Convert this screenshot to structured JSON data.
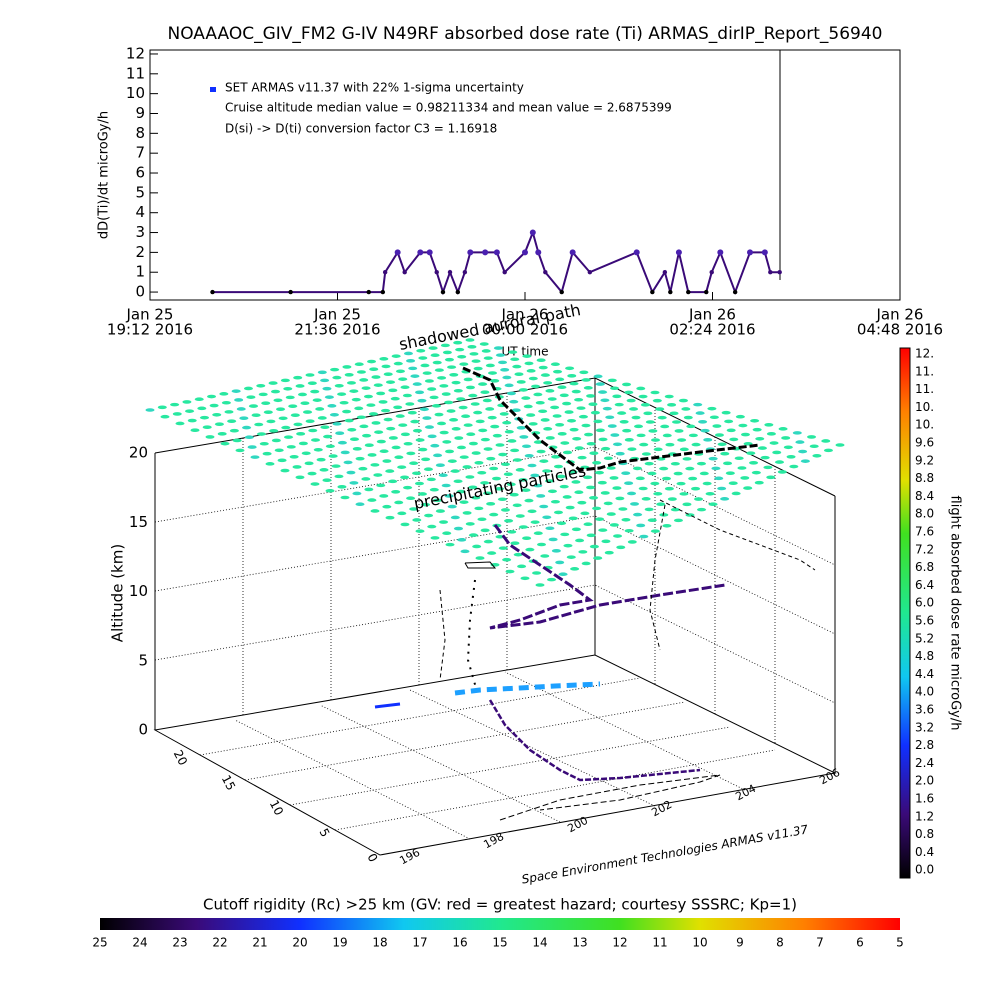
{
  "chart_data": {
    "type": "line",
    "title": "NOAAAOC_GIV_FM2 G-IV    N49RF  absorbed dose rate (Ti) ARMAS_dirIP_Report_56940",
    "y_label": "dD(Ti)/dt microGy/h",
    "x_label": "UT time",
    "legend_lines": [
      "SET ARMAS v11.37 with 22% 1-sigma uncertainty",
      "Cruise altitude median value = 0.98211334 and mean value = 2.6875399",
      "D(si) -> D(ti) conversion factor C3 = 1.16918"
    ],
    "ylim": [
      -0.4,
      12.2
    ],
    "yticks": [
      0,
      1,
      2,
      3,
      4,
      5,
      6,
      7,
      8,
      9,
      10,
      11,
      12
    ],
    "xlim": [
      19.2,
      28.8
    ],
    "xticks": [
      {
        "value": 19.2,
        "label": [
          "Jan 25",
          "19:12 2016"
        ]
      },
      {
        "value": 21.6,
        "label": [
          "Jan 25",
          "21:36 2016"
        ]
      },
      {
        "value": 24.0,
        "label": [
          "Jan 26",
          "00:00 2016"
        ]
      },
      {
        "value": 26.4,
        "label": [
          "Jan 26",
          "02:24 2016"
        ]
      },
      {
        "value": 28.8,
        "label": [
          "Jan 26",
          "04:48 2016"
        ]
      }
    ],
    "series": [
      {
        "name": "SET ARMAS v11.37",
        "color": "#3a0a78",
        "x": [
          20.0,
          21.0,
          22.0,
          22.18,
          22.21,
          22.37,
          22.46,
          22.66,
          22.78,
          22.87,
          22.95,
          23.04,
          23.14,
          23.23,
          23.3,
          23.49,
          23.64,
          23.74,
          24.0,
          24.1,
          24.17,
          24.26,
          24.47,
          24.61,
          24.83,
          25.43,
          25.63,
          25.79,
          25.86,
          25.97,
          26.09,
          26.32,
          26.39,
          26.5,
          26.69,
          26.88,
          27.07,
          27.14,
          27.26
        ],
        "values": [
          0,
          0,
          0,
          0,
          1,
          2,
          1,
          2,
          2,
          1,
          0,
          1,
          0,
          1,
          2,
          2,
          2,
          1,
          2,
          3,
          2,
          1,
          0,
          2,
          1,
          2,
          0,
          1,
          0,
          2,
          0,
          0,
          1,
          2,
          0,
          2,
          2,
          1,
          1
        ]
      }
    ]
  },
  "panel_3d": {
    "annotations": [
      "shadowed auroral path",
      "precipitating particles"
    ],
    "z_label": "Altitude (km)",
    "zticks": [
      "0",
      "5",
      "10",
      "15",
      "20"
    ],
    "left_ticks": [
      "20",
      "15",
      "10",
      "5",
      "0"
    ],
    "bottom_ticks": [
      "196",
      "198",
      "200",
      "202",
      "204",
      "206"
    ],
    "credit": "Space Environment Technologies ARMAS v11.37"
  },
  "colorbar_right": {
    "label": "flight absorbed dose rate microGy/h",
    "labels": [
      "12.",
      "11.",
      "11.",
      "10.",
      "10.",
      "9.6",
      "9.2",
      "8.8",
      "8.4",
      "8.0",
      "7.6",
      "7.2",
      "6.8",
      "6.4",
      "6.0",
      "5.6",
      "5.2",
      "4.8",
      "4.4",
      "4.0",
      "3.6",
      "3.2",
      "2.8",
      "2.4",
      "2.0",
      "1.6",
      "1.2",
      "0.8",
      "0.4",
      "0.0"
    ]
  },
  "colorbar_bottom": {
    "title": "Cutoff rigidity (Rc) >25 km (GV: red = greatest hazard; courtesy SSSRC; Kp=1)",
    "labels": [
      25,
      24,
      23,
      22,
      21,
      20,
      19,
      18,
      17,
      16,
      15,
      14,
      13,
      12,
      11,
      10,
      9,
      8,
      7,
      6,
      5
    ]
  }
}
